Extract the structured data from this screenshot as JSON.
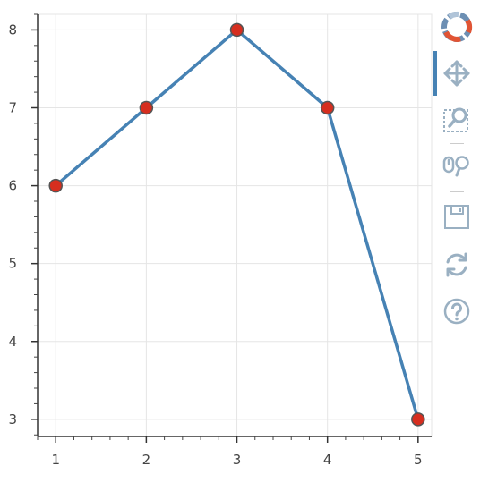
{
  "chart_data": {
    "type": "line",
    "x": [
      1,
      2,
      3,
      4,
      5
    ],
    "y": [
      6,
      7,
      8,
      7,
      3
    ],
    "xlim": [
      0.8,
      5.15
    ],
    "ylim": [
      2.78,
      8.2
    ],
    "xticks": [
      1,
      2,
      3,
      4,
      5
    ],
    "yticks": [
      3,
      4,
      5,
      6,
      7,
      8
    ],
    "xlabel": "",
    "ylabel": "",
    "title": "",
    "grid": true,
    "line_color": "#4682b4",
    "marker_color": "#d62e1f",
    "marker_edge_color": "#555555"
  },
  "toolbar": {
    "tools": [
      {
        "name": "bokeh-logo",
        "icon": "bokeh-logo-icon"
      },
      {
        "name": "pan",
        "icon": "pan-icon",
        "active": true
      },
      {
        "name": "box-zoom",
        "icon": "box-zoom-icon"
      },
      {
        "name": "wheel-zoom",
        "icon": "wheel-zoom-icon"
      },
      {
        "name": "save",
        "icon": "save-icon"
      },
      {
        "name": "reset",
        "icon": "reset-icon"
      },
      {
        "name": "help",
        "icon": "help-icon"
      }
    ]
  }
}
